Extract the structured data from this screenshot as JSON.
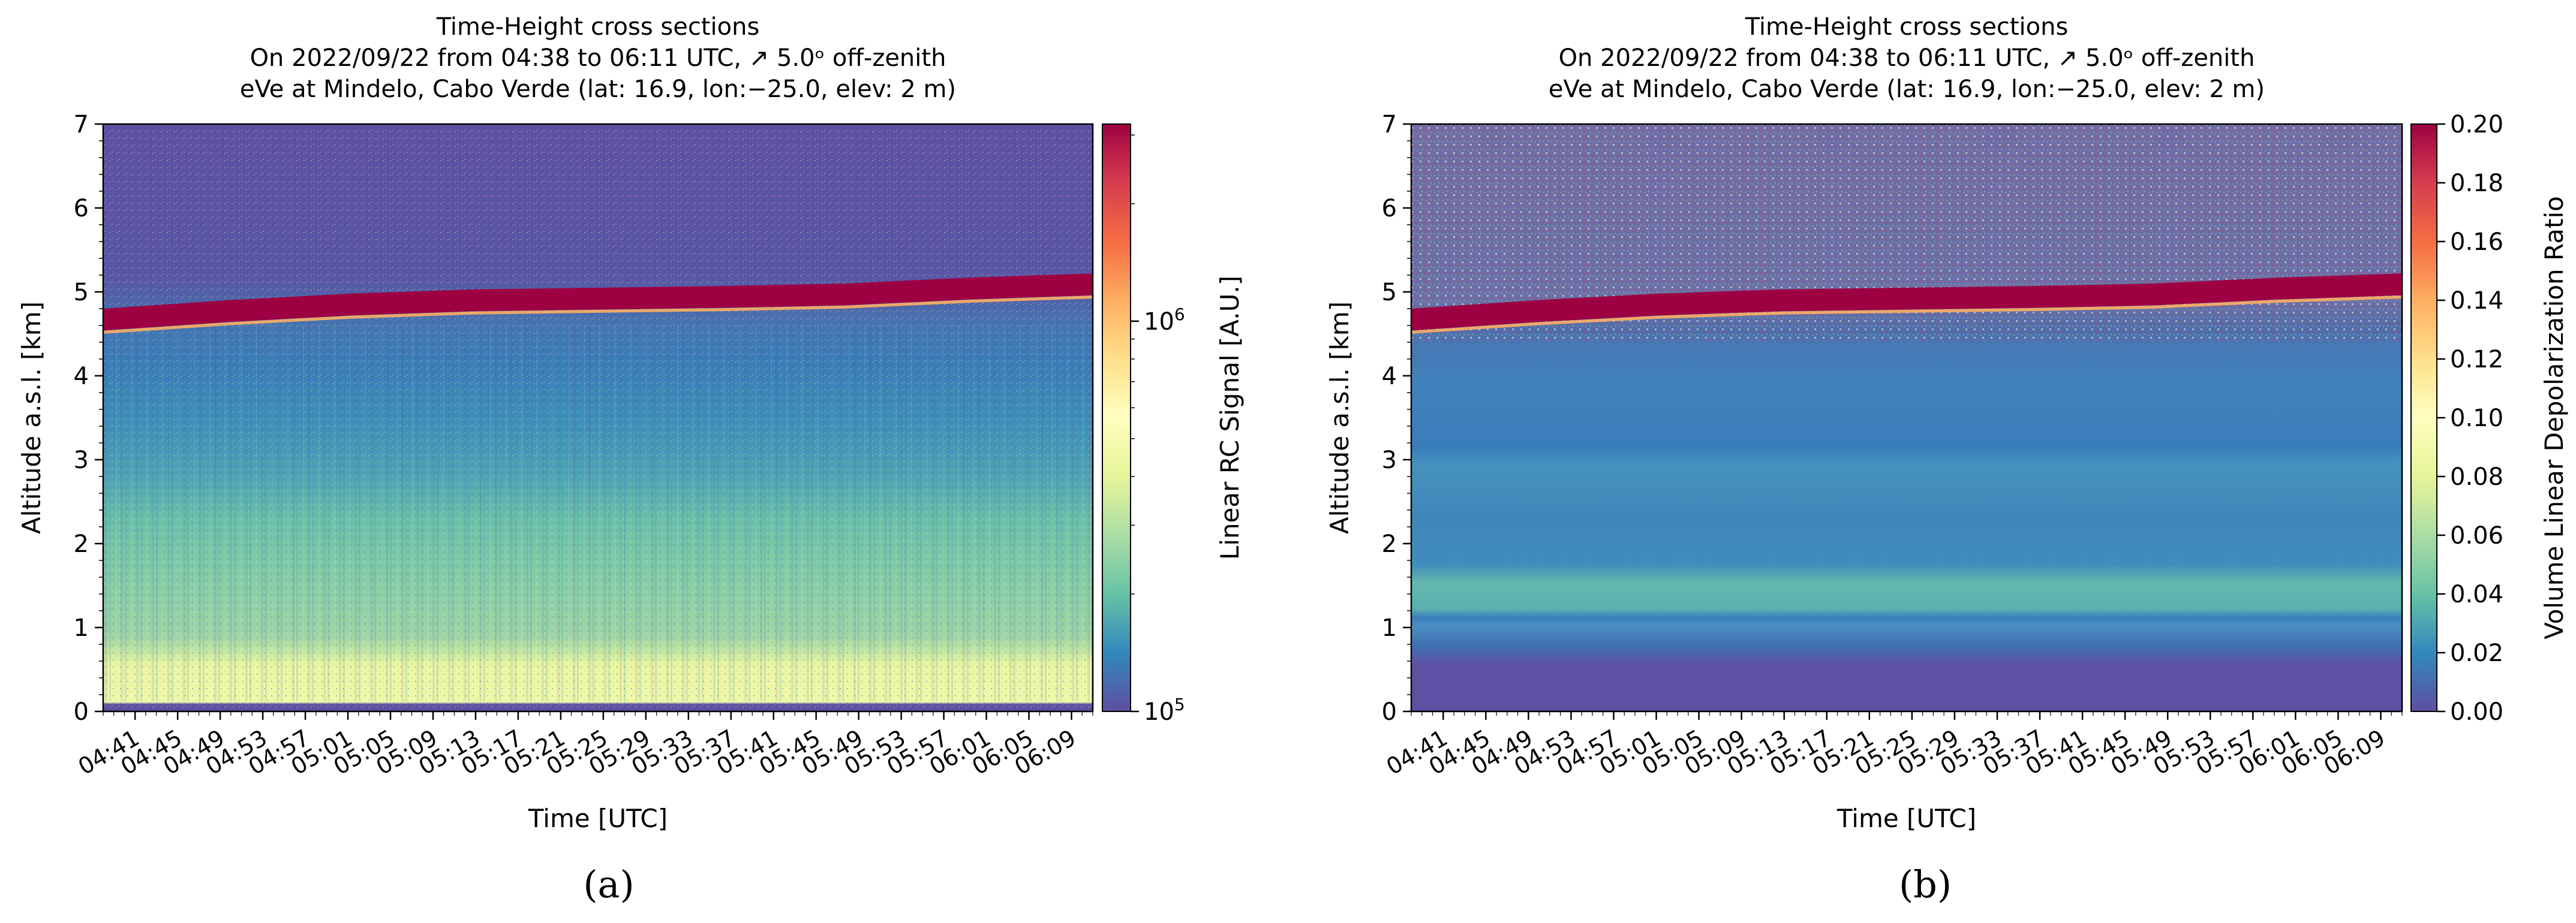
{
  "figure": {
    "panels": [
      "a",
      "b"
    ],
    "panel_letters": [
      "(a)",
      "(b)"
    ]
  },
  "chart_data": [
    {
      "id": "a",
      "type": "heatmap",
      "title_lines": [
        "Time-Height cross sections",
        "On 2022/09/22 from 04:38 to 06:11 UTC, ↗ 5.0ᵒ off-zenith",
        "eVe at Mindelo, Cabo Verde (lat: 16.9, lon:−25.0, elev: 2 m)"
      ],
      "xlabel": "Time [UTC]",
      "ylabel": "Altitude a.s.l. [km]",
      "x_start": "04:38",
      "x_end": "06:11",
      "x_range_min": [
        0,
        93
      ],
      "x_tick_labels": [
        "04:41",
        "04:45",
        "04:49",
        "04:53",
        "04:57",
        "05:01",
        "05:05",
        "05:09",
        "05:13",
        "05:17",
        "05:21",
        "05:25",
        "05:29",
        "05:33",
        "05:37",
        "05:41",
        "05:45",
        "05:49",
        "05:53",
        "05:57",
        "06:01",
        "06:05",
        "06:09"
      ],
      "x_tick_minutes": [
        3,
        7,
        11,
        15,
        19,
        23,
        27,
        31,
        35,
        39,
        43,
        47,
        51,
        55,
        59,
        63,
        67,
        71,
        75,
        79,
        83,
        87,
        91
      ],
      "ylim": [
        0,
        7
      ],
      "y_ticks": [
        0,
        1,
        2,
        3,
        4,
        5,
        6,
        7
      ],
      "y_tick_labels": [
        "0",
        "1",
        "2",
        "3",
        "4",
        "5",
        "6",
        "7"
      ],
      "colorbar": {
        "label": "Linear RC Signal [A.U.]",
        "scale": "log",
        "range": [
          100000,
          3200000
        ],
        "tick_values": [
          100000,
          1000000
        ],
        "tick_base": [
          "10",
          "10"
        ],
        "tick_exp": [
          "5",
          "6"
        ]
      },
      "features": {
        "cloud_layer_top_km": [
          4.68,
          4.78,
          4.86,
          4.91,
          4.93,
          4.95,
          4.98,
          5.05,
          5.1
        ],
        "cloud_layer_color": "#9e0142",
        "background_color": "#5e4fa2"
      }
    },
    {
      "id": "b",
      "type": "heatmap",
      "title_lines": [
        "Time-Height cross sections",
        "On 2022/09/22 from 04:38 to 06:11 UTC, ↗ 5.0ᵒ off-zenith",
        "eVe at Mindelo, Cabo Verde (lat: 16.9, lon:−25.0, elev: 2 m)"
      ],
      "xlabel": "Time [UTC]",
      "ylabel": "Altitude a.s.l. [km]",
      "x_start": "04:38",
      "x_end": "06:11",
      "x_range_min": [
        0,
        93
      ],
      "x_tick_labels": [
        "04:41",
        "04:45",
        "04:49",
        "04:53",
        "04:57",
        "05:01",
        "05:05",
        "05:09",
        "05:13",
        "05:17",
        "05:21",
        "05:25",
        "05:29",
        "05:33",
        "05:37",
        "05:41",
        "05:45",
        "05:49",
        "05:53",
        "05:57",
        "06:01",
        "06:05",
        "06:09"
      ],
      "x_tick_minutes": [
        3,
        7,
        11,
        15,
        19,
        23,
        27,
        31,
        35,
        39,
        43,
        47,
        51,
        55,
        59,
        63,
        67,
        71,
        75,
        79,
        83,
        87,
        91
      ],
      "ylim": [
        0,
        7
      ],
      "y_ticks": [
        0,
        1,
        2,
        3,
        4,
        5,
        6,
        7
      ],
      "y_tick_labels": [
        "0",
        "1",
        "2",
        "3",
        "4",
        "5",
        "6",
        "7"
      ],
      "colorbar": {
        "label": "Volume Linear Depolarization Ratio",
        "scale": "linear",
        "range": [
          0,
          0.2
        ],
        "tick_values": [
          0,
          0.02,
          0.04,
          0.06,
          0.08,
          0.1,
          0.12,
          0.14,
          0.16,
          0.18,
          0.2
        ],
        "tick_labels": [
          "0.00",
          "0.02",
          "0.04",
          "0.06",
          "0.08",
          "0.10",
          "0.12",
          "0.14",
          "0.16",
          "0.18",
          "0.20"
        ]
      },
      "features": {
        "cloud_layer_top_km": [
          4.68,
          4.78,
          4.86,
          4.91,
          4.93,
          4.95,
          4.98,
          5.05,
          5.1
        ],
        "cloud_layer_color": "#9e0142",
        "dust_layer_top_km": 3.1,
        "low_layer_km": [
          1.2,
          1.6
        ]
      }
    }
  ]
}
